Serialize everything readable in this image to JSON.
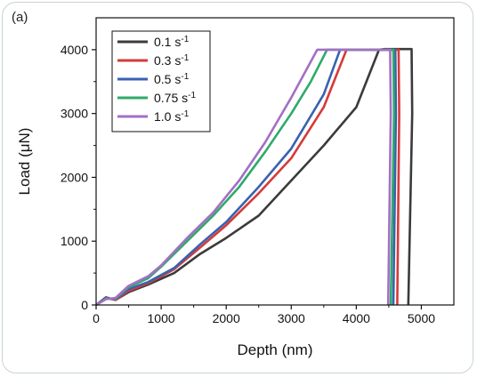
{
  "panel_label": "(a)",
  "chart_data": {
    "type": "line",
    "title": "",
    "xlabel": "Depth (nm)",
    "ylabel": "Load (μN)",
    "xlim": [
      0,
      5500
    ],
    "ylim": [
      0,
      4500
    ],
    "xticks": [
      0,
      1000,
      2000,
      3000,
      4000,
      5000
    ],
    "yticks": [
      0,
      1000,
      2000,
      3000,
      4000
    ],
    "legend": "top-left",
    "grid": false,
    "series": [
      {
        "name": "0.1 s",
        "sup": "-1",
        "color": "#3b3b3b",
        "x": [
          0,
          150,
          300,
          500,
          800,
          1200,
          1600,
          2000,
          2500,
          3000,
          3500,
          4000,
          4350,
          4440,
          4850,
          4860,
          4800
        ],
        "y": [
          0,
          120,
          80,
          200,
          320,
          500,
          800,
          1050,
          1400,
          1950,
          2500,
          3100,
          4000,
          4010,
          4010,
          3000,
          0
        ]
      },
      {
        "name": "0.3 s",
        "sup": "-1",
        "color": "#d63a3a",
        "x": [
          0,
          150,
          300,
          500,
          800,
          1200,
          1600,
          2000,
          2500,
          3000,
          3500,
          3850,
          4650,
          4660,
          4630
        ],
        "y": [
          0,
          110,
          80,
          220,
          340,
          560,
          900,
          1250,
          1750,
          2300,
          3100,
          4000,
          4000,
          3000,
          0
        ]
      },
      {
        "name": "0.5 s",
        "sup": "-1",
        "color": "#3762b0",
        "x": [
          0,
          150,
          300,
          500,
          800,
          1200,
          1600,
          2000,
          2500,
          3000,
          3500,
          3750,
          4600,
          4610,
          4570
        ],
        "y": [
          0,
          110,
          90,
          250,
          360,
          580,
          950,
          1300,
          1850,
          2450,
          3300,
          4000,
          4000,
          3000,
          0
        ]
      },
      {
        "name": "0.75 s",
        "sup": "-1",
        "color": "#2faa6a",
        "x": [
          0,
          150,
          300,
          500,
          800,
          1000,
          1400,
          1800,
          2200,
          2600,
          3000,
          3300,
          3550,
          4570,
          4580,
          4530
        ],
        "y": [
          0,
          100,
          100,
          280,
          420,
          600,
          1000,
          1400,
          1850,
          2400,
          3000,
          3500,
          4000,
          4000,
          3000,
          0
        ]
      },
      {
        "name": "1.0 s",
        "sup": "-1",
        "color": "#a36fc4",
        "x": [
          0,
          150,
          300,
          500,
          800,
          1000,
          1400,
          1800,
          2200,
          2600,
          3000,
          3400,
          4520,
          4530,
          4490
        ],
        "y": [
          0,
          90,
          110,
          300,
          450,
          620,
          1050,
          1450,
          1950,
          2550,
          3250,
          4000,
          4000,
          3000,
          0
        ]
      }
    ]
  }
}
